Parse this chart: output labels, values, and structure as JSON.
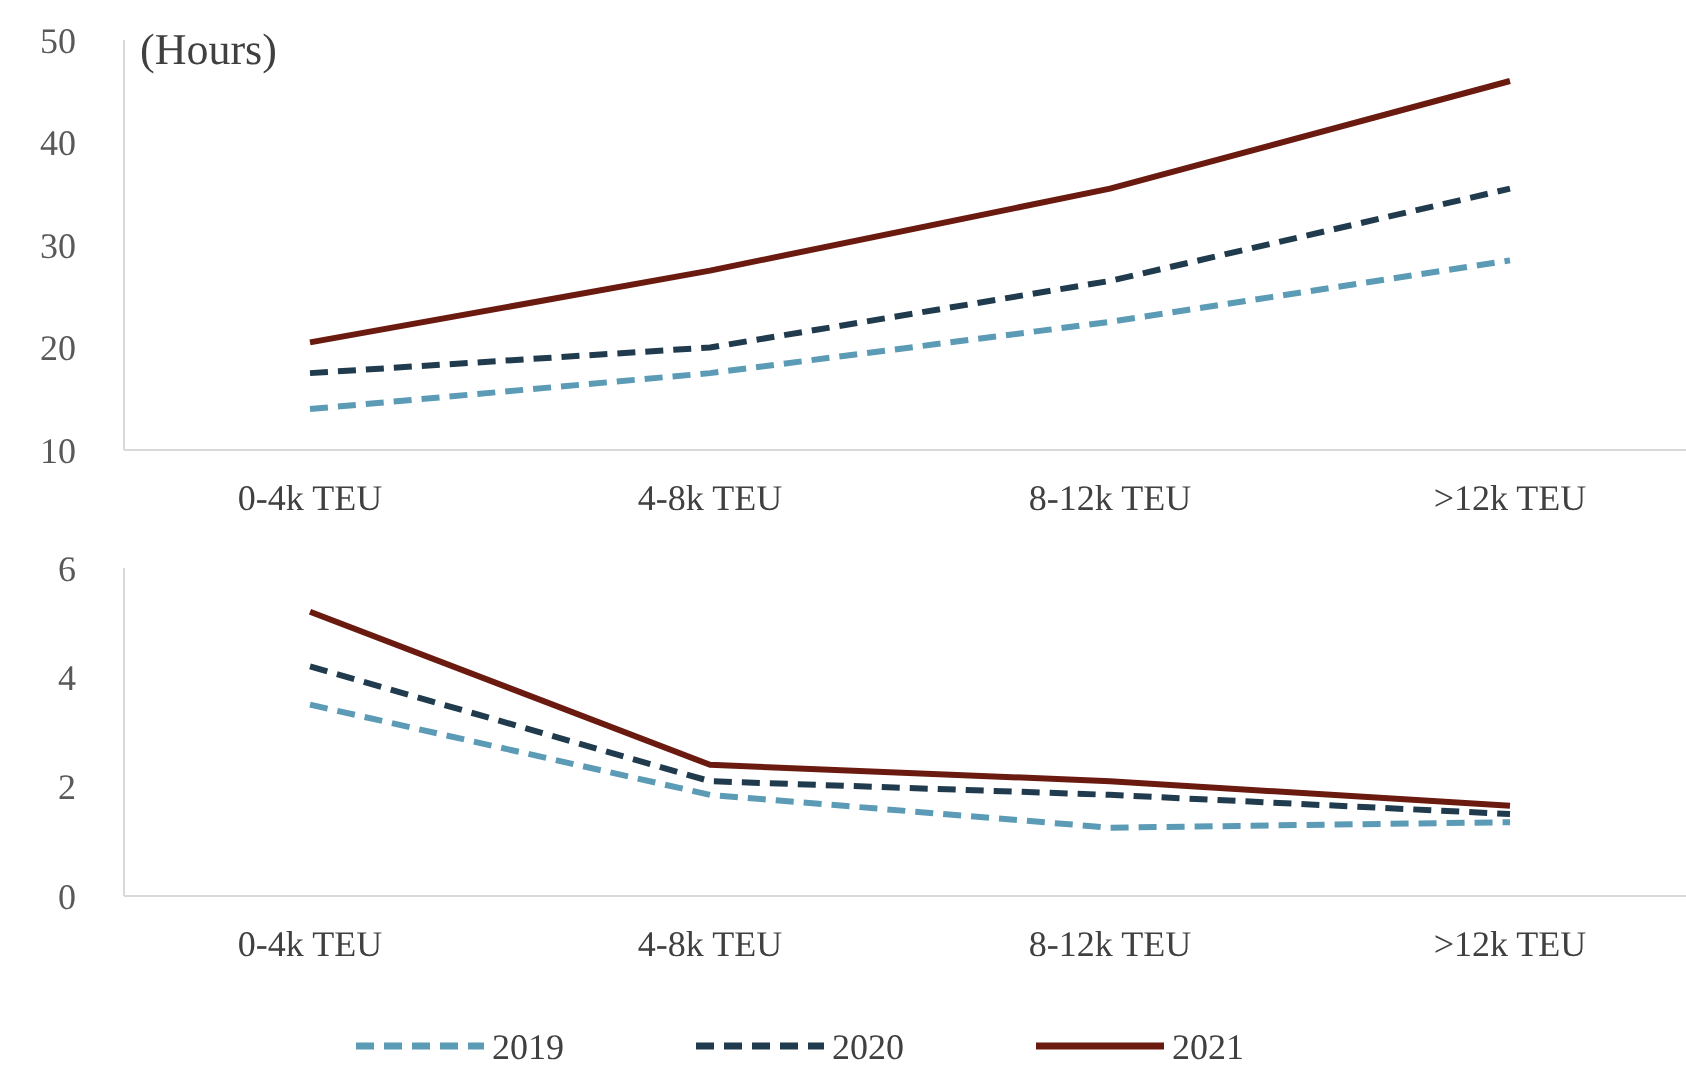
{
  "chart_data": [
    {
      "type": "line",
      "ylabel": "(Hours)",
      "categories": [
        "0-4k TEU",
        "4-8k TEU",
        "8-12k TEU",
        ">12k TEU"
      ],
      "ylim": [
        10,
        50
      ],
      "yticks": [
        10,
        20,
        30,
        40,
        50
      ],
      "grid": false,
      "legend": false,
      "marker": "none",
      "series": [
        {
          "color": "#5b9bb5",
          "line_style": "dashed",
          "values": [
            14,
            17.5,
            22.5,
            28.5
          ]
        },
        {
          "color": "#1f3b4d",
          "line_style": "dashed",
          "values": [
            17.5,
            20,
            26.5,
            35.5
          ]
        },
        {
          "color": "#6b1a10",
          "line_style": "solid",
          "values": [
            20.5,
            27.5,
            35.5,
            46
          ]
        }
      ]
    },
    {
      "type": "line",
      "categories": [
        "0-4k TEU",
        "4-8k TEU",
        "8-12k TEU",
        ">12k TEU"
      ],
      "ylim": [
        0,
        6
      ],
      "yticks": [
        0,
        2,
        4,
        6
      ],
      "grid": false,
      "legend": "bottom",
      "marker": "none",
      "series": [
        {
          "name": "2019",
          "color": "#5b9bb5",
          "line_style": "dashed",
          "values": [
            3.5,
            1.85,
            1.25,
            1.35
          ]
        },
        {
          "name": "2020",
          "color": "#1f3b4d",
          "line_style": "dashed",
          "values": [
            4.2,
            2.1,
            1.85,
            1.5
          ]
        },
        {
          "name": "2021",
          "color": "#6b1a10",
          "line_style": "solid",
          "values": [
            5.2,
            2.4,
            2.1,
            1.65
          ]
        }
      ]
    }
  ]
}
